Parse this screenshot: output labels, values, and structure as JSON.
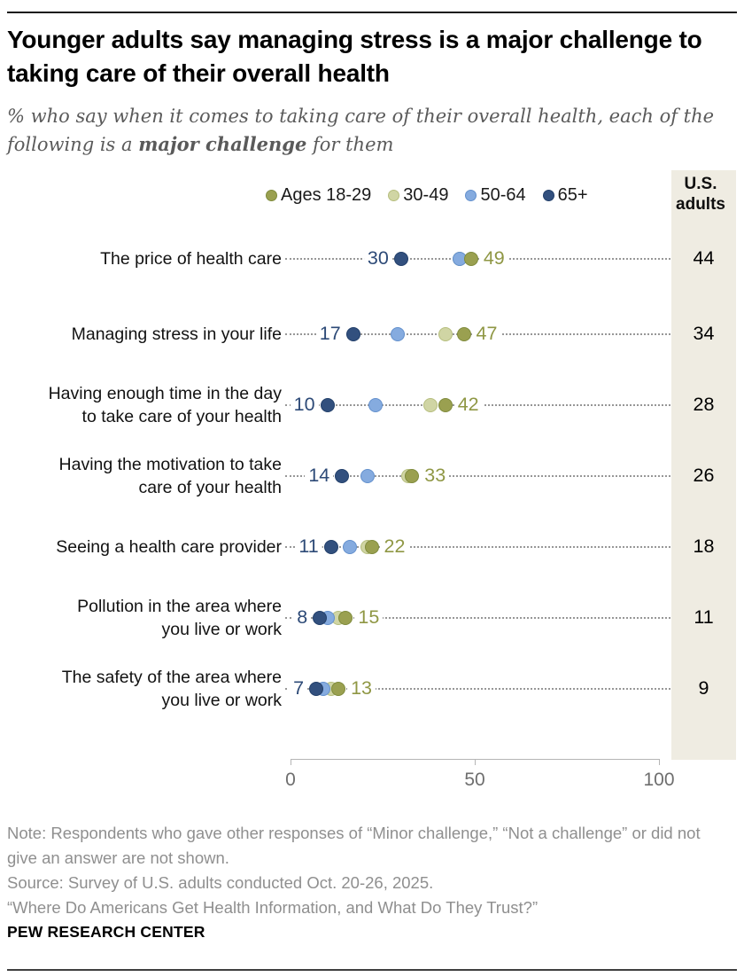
{
  "header": {
    "title": "Younger adults say managing stress is a major challenge to taking care of their overall health",
    "subtitle_prefix": "% who say when it comes to taking care of their overall health, each of the following is a ",
    "subtitle_bold": "major challenge",
    "subtitle_suffix": " for them"
  },
  "legend": {
    "items": [
      {
        "key": "ages_18_29",
        "label": "Ages 18-29",
        "fill": "#9aa050",
        "border": "#7f8b3c"
      },
      {
        "key": "ages_30_49",
        "label": "30-49",
        "fill": "#d0d5a4",
        "border": "#b6be7e"
      },
      {
        "key": "ages_50_64",
        "label": "50-64",
        "fill": "#85abdf",
        "border": "#6390cd"
      },
      {
        "key": "ages_65plus",
        "label": "65+",
        "fill": "#32507e",
        "border": "#223f6a"
      }
    ]
  },
  "us_column": {
    "header_line1": "U.S.",
    "header_line2": "adults",
    "bg": "#efece2"
  },
  "chart_data": {
    "type": "scatter",
    "title": "Younger adults say managing stress is a major challenge to taking care of their overall health",
    "x_axis": {
      "ticks": [
        "0",
        "50",
        "100"
      ],
      "range": [
        0,
        100
      ],
      "grid": false
    },
    "series_names": [
      "Ages 18-29",
      "30-49",
      "50-64",
      "65+",
      "U.S. adults"
    ],
    "legend_position": "top",
    "rows": [
      {
        "label": "The price of health care",
        "ages_18_29": 49,
        "ages_30_49": 46,
        "ages_50_64": 46,
        "ages_65plus": 30,
        "us_adults": 44
      },
      {
        "label": "Managing stress in your life",
        "ages_18_29": 47,
        "ages_30_49": 42,
        "ages_50_64": 29,
        "ages_65plus": 17,
        "us_adults": 34
      },
      {
        "label": "Having enough time in the day\nto take care of your health",
        "ages_18_29": 42,
        "ages_30_49": 38,
        "ages_50_64": 23,
        "ages_65plus": 10,
        "us_adults": 28
      },
      {
        "label": "Having the motivation to take\ncare of your health",
        "ages_18_29": 33,
        "ages_30_49": 32,
        "ages_50_64": 21,
        "ages_65plus": 14,
        "us_adults": 26
      },
      {
        "label": "Seeing a health care provider",
        "ages_18_29": 22,
        "ages_30_49": 21,
        "ages_50_64": 16,
        "ages_65plus": 11,
        "us_adults": 18
      },
      {
        "label": "Pollution in the area where\nyou live or work",
        "ages_18_29": 15,
        "ages_30_49": 13,
        "ages_50_64": 10,
        "ages_65plus": 8,
        "us_adults": 11
      },
      {
        "label": "The safety of the area where\nyou live or work",
        "ages_18_29": 13,
        "ages_30_49": 11,
        "ages_50_64": 9,
        "ages_65plus": 7,
        "us_adults": 9
      }
    ],
    "value_labels": {
      "left_labeled_series": "ages_65plus",
      "right_labeled_series": "ages_18_29"
    }
  },
  "colors": {
    "min_label_text": "#2d4a77",
    "max_label_text": "#8f9744",
    "leader_dots": "#979797",
    "axis_line": "#b5b5b5",
    "axis_text": "#6e6e6e",
    "note_text": "#8f8f8f",
    "us_band_bg": "#efece2"
  },
  "footer": {
    "note_lines": [
      "Note: Respondents who gave other responses of “Minor challenge,” “Not a challenge” or did not give an answer are not shown.",
      "Source: Survey of U.S. adults conducted Oct. 20-26, 2025.",
      "“Where Do Americans Get Health Information, and What Do They Trust?”"
    ],
    "brand": "PEW RESEARCH CENTER"
  }
}
